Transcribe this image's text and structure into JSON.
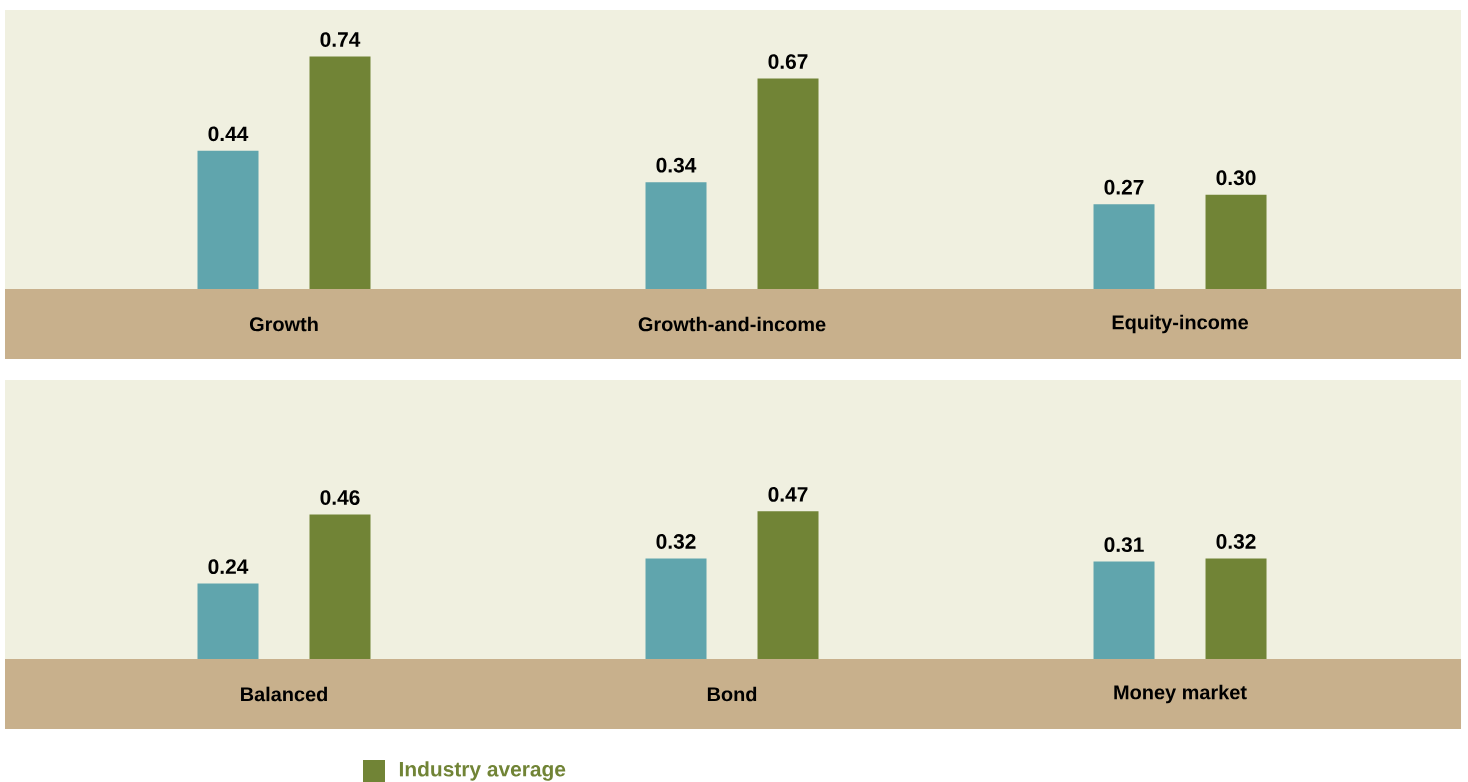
{
  "chart_data": [
    {
      "type": "bar",
      "categories": [
        "Growth",
        "Growth-and-income",
        "Equity-income"
      ],
      "data_labels": true,
      "legend": false,
      "series": [
        {
          "color": "#60a5ad",
          "values": [
            0.44,
            0.34,
            0.27
          ],
          "value_labels": [
            "0.44",
            "0.34",
            "0.27"
          ]
        },
        {
          "color": "#718436",
          "values": [
            0.74,
            0.67,
            0.3
          ],
          "value_labels": [
            "0.74",
            "0.67",
            "0.30"
          ]
        }
      ]
    },
    {
      "type": "bar",
      "categories": [
        "Balanced",
        "Bond",
        "Money market"
      ],
      "data_labels": true,
      "legend": "bottom",
      "series": [
        {
          "color": "#60a5ad",
          "values": [
            0.24,
            0.32,
            0.31
          ],
          "value_labels": [
            "0.24",
            "0.32",
            "0.31"
          ]
        },
        {
          "name": "Industry average",
          "color": "#718436",
          "values": [
            0.46,
            0.47,
            0.32
          ],
          "value_labels": [
            "0.46",
            "0.47",
            "0.32"
          ]
        }
      ]
    }
  ]
}
